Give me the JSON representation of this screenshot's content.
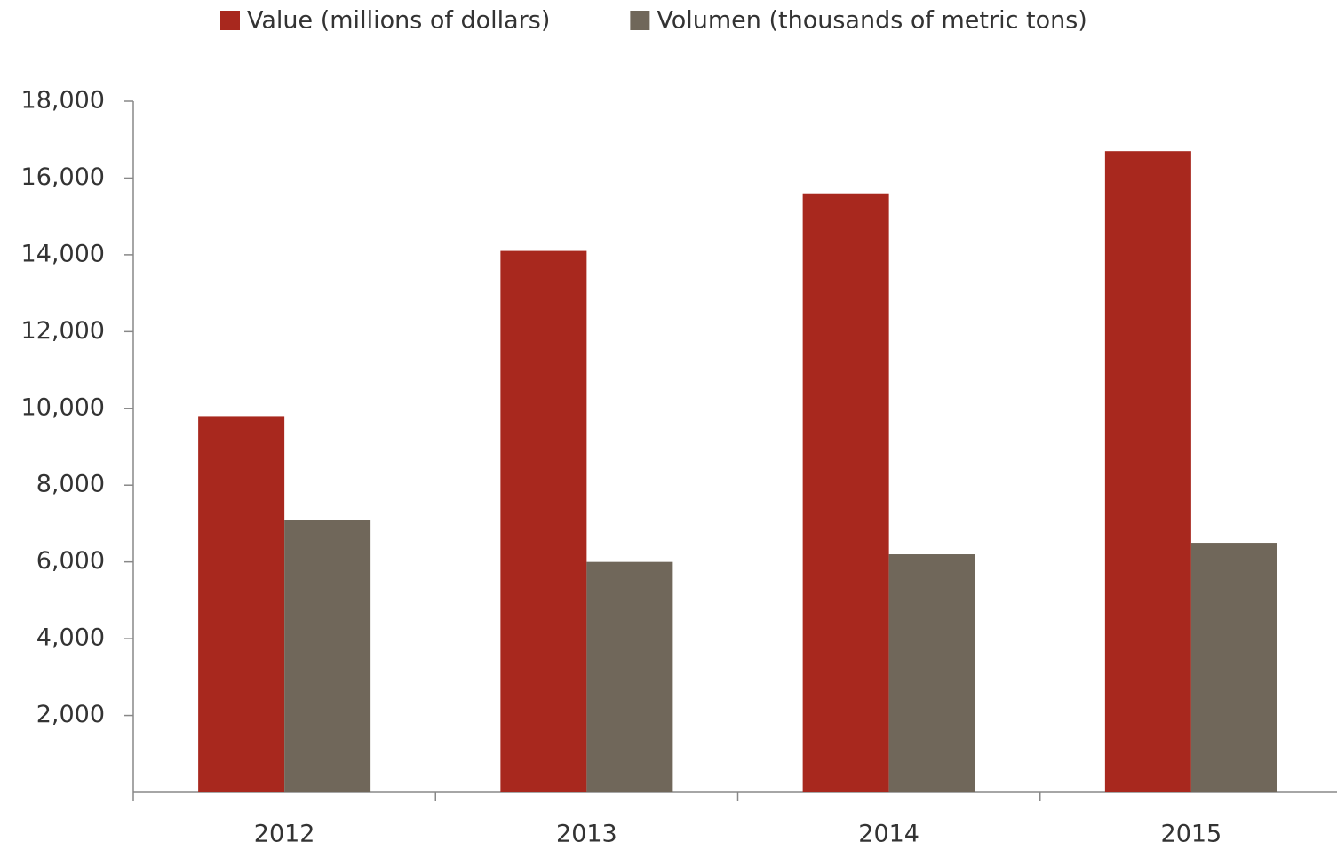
{
  "chart_data": {
    "type": "bar",
    "categories": [
      "2012",
      "2013",
      "2014",
      "2015"
    ],
    "series": [
      {
        "name": "Value (millions of dollars)",
        "color": "#a8281e",
        "values": [
          9800,
          14100,
          15600,
          16700
        ]
      },
      {
        "name": "Volumen (thousands of metric tons)",
        "color": "#70675a",
        "values": [
          7100,
          6000,
          6200,
          6500
        ]
      }
    ],
    "ylim": [
      0,
      18000
    ],
    "yticks": [
      {
        "value": 2000,
        "label": "2,000"
      },
      {
        "value": 4000,
        "label": "4,000"
      },
      {
        "value": 6000,
        "label": "6,000"
      },
      {
        "value": 8000,
        "label": "8,000"
      },
      {
        "value": 10000,
        "label": "10,000"
      },
      {
        "value": 12000,
        "label": "12,000"
      },
      {
        "value": 14000,
        "label": "14,000"
      },
      {
        "value": 16000,
        "label": "16,000"
      },
      {
        "value": 18000,
        "label": "18,000"
      }
    ],
    "grid": false,
    "legend": "top"
  }
}
